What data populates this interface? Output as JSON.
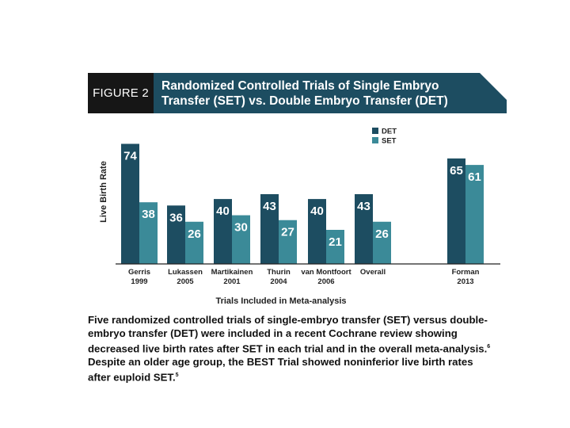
{
  "figure": {
    "label": "FIGURE 2",
    "title": "Randomized Controlled Trials of Single Embryo\nTransfer (SET) vs. Double Embryo Transfer (DET)"
  },
  "colors": {
    "det": "#1d4d61",
    "set": "#3b8a98",
    "axis": "#222222"
  },
  "chart_data": {
    "type": "bar",
    "xlabel": "Trials Included in Meta-analysis",
    "ylabel": "Live Birth Rate",
    "ylim": [
      0,
      80
    ],
    "legend_position": "top-right",
    "grid": false,
    "categories": [
      [
        "Gerris",
        "1999"
      ],
      [
        "Lukassen",
        "2005"
      ],
      [
        "Martikainen",
        "2001"
      ],
      [
        "Thurin",
        "2004"
      ],
      [
        "van Montfoort",
        "2006"
      ],
      [
        "Overall",
        ""
      ],
      [
        "Forman",
        "2013"
      ]
    ],
    "series": [
      {
        "name": "DET",
        "values": [
          74,
          36,
          40,
          43,
          40,
          43,
          65
        ]
      },
      {
        "name": "SET",
        "values": [
          38,
          26,
          30,
          27,
          21,
          26,
          61
        ]
      }
    ]
  },
  "caption": {
    "line1": "Five randomized controlled trials of single-embryo transfer (SET) versus double-",
    "line2": "embryo transfer (DET) were included in a recent Cochrane review showing",
    "line3": "decreased live birth rates after SET in each trial and in the overall meta-analysis.",
    "ref1": "6",
    "line4": "Despite an older age group, the BEST Trial showed noninferior live birth rates",
    "line5": "after euploid SET.",
    "ref2": "5"
  }
}
